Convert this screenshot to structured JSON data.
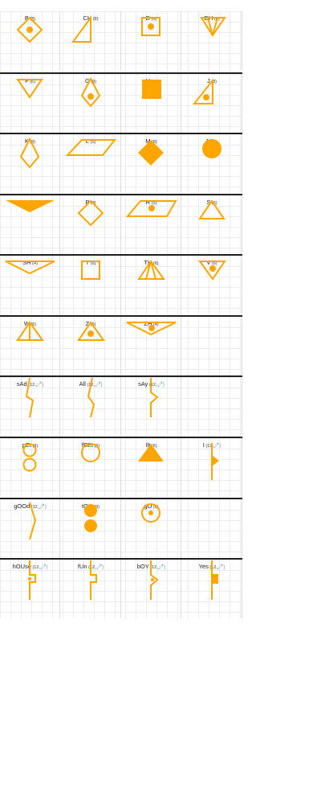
{
  "colors": {
    "symbol": "#ffa500",
    "grid": "#ececec",
    "row_rule": "#222222"
  },
  "rows": [
    [
      {
        "name": "B",
        "count": "(8)",
        "symbol": "diamond-dot"
      },
      {
        "name": "CH",
        "count": "(8)",
        "symbol": "right-triangle"
      },
      {
        "name": "D",
        "count": "(6)",
        "symbol": "square-dot"
      },
      {
        "name": "DH",
        "count": "(6)",
        "symbol": "down-triangle-lines"
      }
    ],
    [
      {
        "name": "F",
        "count": "(6)",
        "symbol": "down-triangle"
      },
      {
        "name": "G",
        "count": "(9)",
        "symbol": "kite-dot"
      },
      {
        "name": "H",
        "count": "(6)",
        "symbol": "filled-square"
      },
      {
        "name": "J",
        "count": "(8)",
        "symbol": "right-triangle-dot"
      }
    ],
    [
      {
        "name": "K",
        "count": "(9)",
        "symbol": "kite"
      },
      {
        "name": "L",
        "count": "(5)",
        "symbol": "parallelogram"
      },
      {
        "name": "M",
        "count": "(8)",
        "symbol": "filled-diamond"
      },
      {
        "name": "N",
        "count": "(6)",
        "symbol": "filled-circle"
      }
    ],
    [
      {
        "name": "NG",
        "count": "(4)",
        "symbol": "filled-wide-down-triangle"
      },
      {
        "name": "P",
        "count": "(8)",
        "symbol": "diamond"
      },
      {
        "name": "R",
        "count": "(5)",
        "symbol": "parallelogram-dot"
      },
      {
        "name": "S",
        "count": "(6)",
        "symbol": "up-triangle"
      }
    ],
    [
      {
        "name": "SH",
        "count": "(4)",
        "symbol": "wide-down-triangle"
      },
      {
        "name": "T",
        "count": "(6)",
        "symbol": "square"
      },
      {
        "name": "TH",
        "count": "(6)",
        "symbol": "up-triangle-lines"
      },
      {
        "name": "V",
        "count": "(6)",
        "symbol": "down-triangle-dot"
      }
    ],
    [
      {
        "name": "W",
        "count": "(6)",
        "symbol": "up-triangle-line"
      },
      {
        "name": "Z",
        "count": "(6)",
        "symbol": "up-triangle-dot"
      },
      {
        "name": "ZH",
        "count": "(4)",
        "symbol": "wide-down-triangle-dot"
      },
      null
    ],
    [
      {
        "name": "sAd",
        "count": "(12,",
        "clip": "🧷)",
        "symbol": "zigzag-a"
      },
      {
        "name": "All",
        "count": "(12,",
        "clip": "🧷)",
        "symbol": "zigzag-b"
      },
      {
        "name": "sAy",
        "count": "(12,",
        "clip": "🧷)",
        "symbol": "stem-chevron"
      },
      null
    ],
    [
      {
        "name": "pEt",
        "count": "(9)",
        "symbol": "two-circles"
      },
      {
        "name": "fEEt",
        "count": "(6)",
        "symbol": "circle"
      },
      {
        "name": "Ilt",
        "count": "(6)",
        "symbol": "filled-up-triangle"
      },
      {
        "name": "I",
        "count": "(12,",
        "clip": "🧷)",
        "symbol": "stem-flag"
      }
    ],
    [
      {
        "name": "gOOd",
        "count": "(12,",
        "clip": "🧷)",
        "symbol": "angle-bracket"
      },
      {
        "name": "tOO",
        "count": "(9)",
        "symbol": "two-filled-circles"
      },
      {
        "name": "gO",
        "count": "(6)",
        "symbol": "circle-dot"
      },
      null
    ],
    [
      {
        "name": "hOUse",
        "count": "(12,",
        "clip": "🧷)",
        "symbol": "stem-notch-dot"
      },
      {
        "name": "fUn",
        "count": "(12,",
        "clip": "🧷)",
        "symbol": "stem-notch"
      },
      {
        "name": "bOY",
        "count": "(12,",
        "clip": "🧷)",
        "symbol": "stem-chevron-dot"
      },
      {
        "name": "Yes",
        "count": "(12,",
        "clip": "🧷)",
        "symbol": "stem-block"
      }
    ]
  ]
}
